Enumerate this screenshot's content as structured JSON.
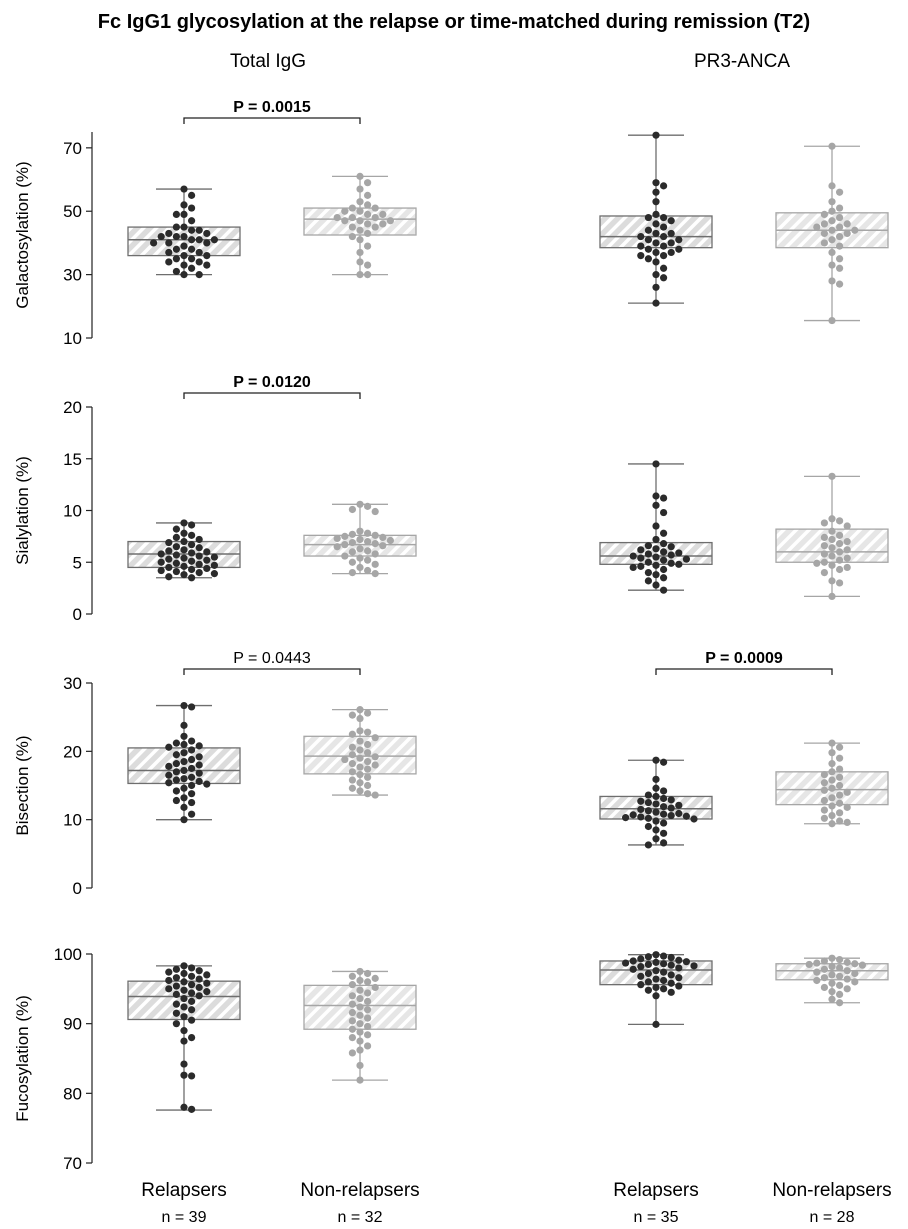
{
  "title": "Fc IgG1 glycosylation at the relapse or time-matched during remission (T2)",
  "columns": [
    "Total IgG",
    "PR3-ANCA"
  ],
  "groups": [
    "Relapsers",
    "Non-relapsers",
    "Relapsers",
    "Non-relapsers"
  ],
  "n_labels": [
    "n = 39",
    "n = 32",
    "n = 35",
    "n = 28"
  ],
  "colors": {
    "relapsers": "#2b2b2b",
    "non_relapsers": "#a6a6a6",
    "box_fill": "#dcdcdc",
    "hatch": "#ffffff"
  },
  "chart_data": [
    {
      "type": "box",
      "ylabel": "Galactosylation (%)",
      "ylim": [
        10,
        75
      ],
      "yticks": [
        10,
        30,
        50,
        70
      ],
      "grid": false,
      "columns": [
        {
          "name": "Total IgG",
          "pvalue": {
            "text": "P = 0.0015",
            "bold": true
          },
          "boxes": [
            {
              "group": "Relapsers",
              "n": 39,
              "min": 30,
              "q1": 36,
              "median": 41,
              "q3": 45,
              "max": 57,
              "points": [
                57,
                55,
                52,
                51,
                49,
                49,
                47,
                45,
                45,
                44,
                44,
                43,
                43,
                42,
                42,
                42,
                41,
                41,
                41,
                40,
                40,
                40,
                39,
                38,
                38,
                37,
                37,
                36,
                36,
                35,
                35,
                34,
                34,
                33,
                33,
                32,
                31,
                30,
                30
              ]
            },
            {
              "group": "Non-relapsers",
              "n": 32,
              "min": 30,
              "q1": 42.5,
              "median": 47.5,
              "q3": 51,
              "max": 61,
              "points": [
                61,
                59,
                57,
                55,
                53,
                52,
                51,
                51,
                50,
                50,
                49,
                49,
                48,
                48,
                48,
                47,
                47,
                47,
                46,
                46,
                45,
                45,
                44,
                43,
                42,
                41,
                39,
                37,
                34,
                33,
                30,
                30
              ]
            }
          ]
        },
        {
          "name": "PR3-ANCA",
          "pvalue": null,
          "boxes": [
            {
              "group": "Relapsers",
              "n": 35,
              "min": 21,
              "q1": 38.5,
              "median": 42,
              "q3": 48.5,
              "max": 74,
              "points": [
                74,
                59,
                58,
                56,
                53,
                49,
                48,
                48,
                47,
                46,
                45,
                44,
                43,
                43,
                42,
                42,
                41,
                41,
                40,
                40,
                39,
                39,
                38,
                38,
                37,
                37,
                36,
                36,
                35,
                34,
                32,
                30,
                29,
                26,
                21
              ]
            },
            {
              "group": "Non-relapsers",
              "n": 28,
              "min": 15.5,
              "q1": 38.5,
              "median": 44,
              "q3": 49.5,
              "max": 70.5,
              "points": [
                70.5,
                58,
                56,
                53,
                51,
                50,
                49,
                48,
                47,
                46,
                46,
                45,
                45,
                44,
                44,
                43,
                43,
                42,
                41,
                40,
                39,
                37,
                35,
                33,
                32,
                28,
                27,
                15.5
              ]
            }
          ]
        }
      ]
    },
    {
      "type": "box",
      "ylabel": "Sialylation (%)",
      "ylim": [
        0,
        20
      ],
      "yticks": [
        0,
        5,
        10,
        15,
        20
      ],
      "grid": false,
      "columns": [
        {
          "name": "Total IgG",
          "pvalue": {
            "text": "P = 0.0120",
            "bold": true
          },
          "boxes": [
            {
              "group": "Relapsers",
              "n": 39,
              "min": 3.5,
              "q1": 4.5,
              "median": 5.8,
              "q3": 7.0,
              "max": 8.8,
              "points": [
                8.8,
                8.6,
                8.2,
                7.8,
                7.6,
                7.4,
                7.2,
                7.0,
                6.9,
                6.7,
                6.5,
                6.4,
                6.2,
                6.1,
                6.0,
                5.9,
                5.8,
                5.7,
                5.6,
                5.5,
                5.4,
                5.3,
                5.2,
                5.1,
                5.0,
                4.9,
                4.8,
                4.7,
                4.6,
                4.5,
                4.4,
                4.3,
                4.2,
                4.1,
                4.0,
                3.9,
                3.8,
                3.6,
                3.5
              ]
            },
            {
              "group": "Non-relapsers",
              "n": 32,
              "min": 3.9,
              "q1": 5.6,
              "median": 6.7,
              "q3": 7.6,
              "max": 10.6,
              "points": [
                10.6,
                10.4,
                10.1,
                9.9,
                8.0,
                7.8,
                7.7,
                7.6,
                7.5,
                7.4,
                7.3,
                7.2,
                7.1,
                7.0,
                6.9,
                6.8,
                6.7,
                6.6,
                6.5,
                6.3,
                6.1,
                6.0,
                5.8,
                5.6,
                5.4,
                5.2,
                5.0,
                4.8,
                4.5,
                4.2,
                4.0,
                3.9
              ]
            }
          ]
        },
        {
          "name": "PR3-ANCA",
          "pvalue": null,
          "boxes": [
            {
              "group": "Relapsers",
              "n": 35,
              "min": 2.3,
              "q1": 4.8,
              "median": 5.6,
              "q3": 6.9,
              "max": 14.5,
              "points": [
                14.5,
                11.4,
                11.2,
                10.5,
                9.8,
                8.5,
                7.8,
                7.2,
                6.8,
                6.6,
                6.5,
                6.3,
                6.2,
                6.0,
                5.9,
                5.8,
                5.7,
                5.6,
                5.5,
                5.4,
                5.3,
                5.2,
                5.0,
                4.9,
                4.8,
                4.7,
                4.6,
                4.5,
                4.3,
                4.0,
                3.8,
                3.5,
                3.2,
                2.8,
                2.3
              ]
            },
            {
              "group": "Non-relapsers",
              "n": 28,
              "min": 1.7,
              "q1": 5.0,
              "median": 6.0,
              "q3": 8.2,
              "max": 13.3,
              "points": [
                13.3,
                9.2,
                9.0,
                8.8,
                8.5,
                8.0,
                7.6,
                7.4,
                7.2,
                7.0,
                6.8,
                6.6,
                6.4,
                6.2,
                6.0,
                5.8,
                5.6,
                5.4,
                5.2,
                5.0,
                4.9,
                4.7,
                4.5,
                4.3,
                4.0,
                3.2,
                3.0,
                1.7
              ]
            }
          ]
        }
      ]
    },
    {
      "type": "box",
      "ylabel": "Bisection (%)",
      "ylim": [
        0,
        30
      ],
      "yticks": [
        0,
        10,
        20,
        30
      ],
      "grid": false,
      "columns": [
        {
          "name": "Total IgG",
          "pvalue": {
            "text": "P = 0.0443",
            "bold": false
          },
          "boxes": [
            {
              "group": "Relapsers",
              "n": 39,
              "min": 10,
              "q1": 15.3,
              "median": 17.2,
              "q3": 20.5,
              "max": 26.7,
              "points": [
                26.7,
                26.5,
                23.8,
                22.2,
                21.5,
                21.2,
                21.0,
                20.8,
                20.6,
                20.2,
                19.8,
                19.5,
                19.2,
                18.8,
                18.5,
                18.2,
                18.0,
                17.8,
                17.5,
                17.2,
                17.0,
                16.8,
                16.5,
                16.2,
                16.0,
                15.8,
                15.6,
                15.4,
                15.2,
                15.0,
                14.6,
                14.2,
                13.8,
                13.2,
                12.8,
                12.5,
                11.8,
                10.8,
                10.0
              ]
            },
            {
              "group": "Non-relapsers",
              "n": 32,
              "min": 13.6,
              "q1": 16.7,
              "median": 19.3,
              "q3": 22.2,
              "max": 26.1,
              "points": [
                26.1,
                25.6,
                25.3,
                24.8,
                23.0,
                22.8,
                22.5,
                22.0,
                21.5,
                21.0,
                20.6,
                20.2,
                19.8,
                19.5,
                19.2,
                19.0,
                18.8,
                18.5,
                18.2,
                18.0,
                17.7,
                17.4,
                17.0,
                16.6,
                16.2,
                15.8,
                15.4,
                15.0,
                14.6,
                14.2,
                13.8,
                13.6
              ]
            }
          ]
        },
        {
          "name": "PR3-ANCA",
          "pvalue": {
            "text": "P = 0.0009",
            "bold": true
          },
          "boxes": [
            {
              "group": "Relapsers",
              "n": 35,
              "min": 6.3,
              "q1": 10.1,
              "median": 11.6,
              "q3": 13.4,
              "max": 18.7,
              "points": [
                18.7,
                18.4,
                15.9,
                14.6,
                14.2,
                13.6,
                13.4,
                13.1,
                12.9,
                12.7,
                12.5,
                12.3,
                12.1,
                11.9,
                11.7,
                11.5,
                11.3,
                11.1,
                10.9,
                10.8,
                10.7,
                10.6,
                10.5,
                10.4,
                10.3,
                10.2,
                10.1,
                9.8,
                9.5,
                9.0,
                8.5,
                8.0,
                7.2,
                6.6,
                6.3
              ]
            },
            {
              "group": "Non-relapsers",
              "n": 28,
              "min": 9.4,
              "q1": 12.2,
              "median": 14.4,
              "q3": 17.0,
              "max": 21.2,
              "points": [
                21.2,
                20.6,
                19.8,
                19.0,
                18.2,
                17.4,
                17.0,
                16.6,
                16.2,
                15.8,
                15.4,
                15.0,
                14.6,
                14.3,
                14.0,
                13.6,
                13.2,
                12.8,
                12.4,
                12.0,
                11.8,
                11.4,
                11.0,
                10.6,
                10.2,
                9.8,
                9.6,
                9.4
              ]
            }
          ]
        }
      ]
    },
    {
      "type": "box",
      "ylabel": "Fucosylation (%)",
      "ylim": [
        70,
        100
      ],
      "yticks": [
        70,
        80,
        90,
        100
      ],
      "grid": false,
      "columns": [
        {
          "name": "Total IgG",
          "pvalue": null,
          "boxes": [
            {
              "group": "Relapsers",
              "n": 39,
              "min": 77.6,
              "q1": 90.6,
              "median": 93.9,
              "q3": 96.1,
              "max": 98.3,
              "points": [
                98.3,
                98.0,
                97.8,
                97.6,
                97.4,
                97.2,
                97.0,
                96.8,
                96.6,
                96.4,
                96.2,
                96.0,
                95.8,
                95.6,
                95.4,
                95.2,
                95.0,
                94.8,
                94.6,
                94.4,
                94.2,
                94.0,
                93.6,
                93.2,
                92.8,
                92.4,
                92.0,
                91.5,
                91.0,
                90.5,
                90.0,
                89.0,
                88.0,
                87.5,
                84.2,
                82.6,
                82.5,
                78.0,
                77.7
              ]
            },
            {
              "group": "Non-relapsers",
              "n": 32,
              "min": 81.9,
              "q1": 89.2,
              "median": 92.6,
              "q3": 95.5,
              "max": 97.5,
              "points": [
                97.5,
                97.2,
                96.8,
                96.5,
                96.2,
                96.0,
                95.6,
                95.2,
                94.8,
                94.4,
                94.0,
                93.6,
                93.2,
                92.8,
                92.4,
                92.0,
                91.6,
                91.2,
                90.8,
                90.4,
                90.0,
                89.6,
                89.2,
                88.8,
                88.4,
                88.0,
                87.5,
                86.8,
                86.2,
                85.8,
                84.0,
                81.9
              ]
            }
          ]
        },
        {
          "name": "PR3-ANCA",
          "pvalue": null,
          "boxes": [
            {
              "group": "Relapsers",
              "n": 35,
              "min": 89.9,
              "q1": 95.6,
              "median": 97.7,
              "q3": 99.0,
              "max": 99.9,
              "points": [
                99.9,
                99.7,
                99.6,
                99.5,
                99.3,
                99.1,
                99.0,
                98.9,
                98.8,
                98.7,
                98.6,
                98.5,
                98.4,
                98.3,
                98.2,
                98.0,
                97.8,
                97.6,
                97.4,
                97.2,
                97.0,
                96.8,
                96.6,
                96.4,
                96.2,
                96.0,
                95.8,
                95.6,
                95.4,
                95.2,
                95.0,
                94.8,
                94.5,
                94.0,
                89.9
              ]
            },
            {
              "group": "Non-relapsers",
              "n": 28,
              "min": 93.0,
              "q1": 96.3,
              "median": 97.6,
              "q3": 98.6,
              "max": 99.4,
              "points": [
                99.4,
                99.2,
                99.0,
                98.8,
                98.7,
                98.6,
                98.5,
                98.4,
                98.2,
                98.0,
                97.8,
                97.6,
                97.4,
                97.2,
                97.0,
                96.8,
                96.6,
                96.4,
                96.2,
                96.0,
                95.8,
                95.5,
                95.2,
                95.0,
                94.6,
                94.2,
                93.5,
                93.0
              ]
            }
          ]
        }
      ]
    }
  ]
}
